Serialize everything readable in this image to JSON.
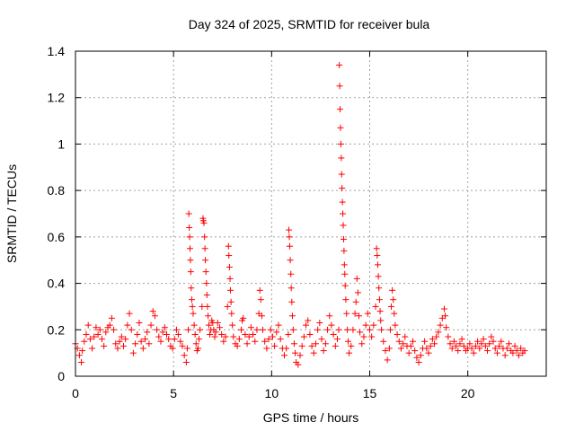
{
  "chart_data": {
    "type": "scatter",
    "title": "Day 324 of 2025, SRMTID for receiver bula",
    "xlabel": "GPS time / hours",
    "ylabel": "SRMTID / TECUs",
    "xlim": [
      0,
      24
    ],
    "ylim": [
      0,
      1.4
    ],
    "xticks": [
      0,
      5,
      10,
      15,
      20
    ],
    "xtick_labels": [
      "0",
      "5",
      "10",
      "15",
      "20"
    ],
    "yticks": [
      0,
      0.2,
      0.4,
      0.6,
      0.8,
      1.0,
      1.2,
      1.4
    ],
    "ytick_labels": [
      "0",
      "0.2",
      "0.4",
      "0.6",
      "0.8",
      "1",
      "1.2",
      "1.4"
    ],
    "grid": true,
    "marker": "+",
    "series": [
      {
        "name": "SRMTID",
        "color": "#ff0000",
        "points": [
          [
            0.0,
            0.14
          ],
          [
            0.1,
            0.12
          ],
          [
            0.2,
            0.09
          ],
          [
            0.3,
            0.06
          ],
          [
            0.35,
            0.11
          ],
          [
            0.45,
            0.15
          ],
          [
            0.55,
            0.18
          ],
          [
            0.65,
            0.22
          ],
          [
            0.75,
            0.16
          ],
          [
            0.85,
            0.12
          ],
          [
            0.95,
            0.17
          ],
          [
            1.05,
            0.21
          ],
          [
            1.15,
            0.18
          ],
          [
            1.25,
            0.2
          ],
          [
            1.35,
            0.16
          ],
          [
            1.45,
            0.13
          ],
          [
            1.55,
            0.19
          ],
          [
            1.65,
            0.21
          ],
          [
            1.75,
            0.22
          ],
          [
            1.85,
            0.25
          ],
          [
            1.95,
            0.2
          ],
          [
            2.05,
            0.14
          ],
          [
            2.15,
            0.12
          ],
          [
            2.25,
            0.15
          ],
          [
            2.35,
            0.17
          ],
          [
            2.45,
            0.13
          ],
          [
            2.55,
            0.16
          ],
          [
            2.65,
            0.22
          ],
          [
            2.75,
            0.27
          ],
          [
            2.85,
            0.2
          ],
          [
            2.95,
            0.1
          ],
          [
            3.05,
            0.14
          ],
          [
            3.15,
            0.18
          ],
          [
            3.25,
            0.23
          ],
          [
            3.35,
            0.15
          ],
          [
            3.45,
            0.12
          ],
          [
            3.55,
            0.16
          ],
          [
            3.65,
            0.19
          ],
          [
            3.75,
            0.14
          ],
          [
            3.85,
            0.22
          ],
          [
            3.95,
            0.28
          ],
          [
            4.05,
            0.26
          ],
          [
            4.15,
            0.2
          ],
          [
            4.25,
            0.17
          ],
          [
            4.35,
            0.15
          ],
          [
            4.45,
            0.19
          ],
          [
            4.55,
            0.21
          ],
          [
            4.65,
            0.18
          ],
          [
            4.75,
            0.16
          ],
          [
            4.85,
            0.13
          ],
          [
            4.95,
            0.12
          ],
          [
            5.05,
            0.16
          ],
          [
            5.15,
            0.2
          ],
          [
            5.25,
            0.18
          ],
          [
            5.35,
            0.15
          ],
          [
            5.45,
            0.13
          ],
          [
            5.55,
            0.09
          ],
          [
            5.65,
            0.06
          ],
          [
            5.7,
            0.12
          ],
          [
            5.75,
            0.2
          ],
          [
            5.78,
            0.7
          ],
          [
            5.8,
            0.64
          ],
          [
            5.82,
            0.6
          ],
          [
            5.84,
            0.55
          ],
          [
            5.86,
            0.5
          ],
          [
            5.88,
            0.45
          ],
          [
            5.9,
            0.38
          ],
          [
            5.93,
            0.33
          ],
          [
            5.96,
            0.3
          ],
          [
            6.0,
            0.27
          ],
          [
            6.05,
            0.22
          ],
          [
            6.1,
            0.18
          ],
          [
            6.15,
            0.14
          ],
          [
            6.2,
            0.11
          ],
          [
            6.25,
            0.12
          ],
          [
            6.3,
            0.16
          ],
          [
            6.35,
            0.2
          ],
          [
            6.45,
            0.3
          ],
          [
            6.5,
            0.68
          ],
          [
            6.52,
            0.67
          ],
          [
            6.55,
            0.66
          ],
          [
            6.58,
            0.6
          ],
          [
            6.6,
            0.55
          ],
          [
            6.62,
            0.5
          ],
          [
            6.65,
            0.45
          ],
          [
            6.68,
            0.4
          ],
          [
            6.7,
            0.35
          ],
          [
            6.73,
            0.3
          ],
          [
            6.76,
            0.26
          ],
          [
            6.8,
            0.22
          ],
          [
            6.85,
            0.18
          ],
          [
            6.9,
            0.2
          ],
          [
            6.95,
            0.24
          ],
          [
            7.0,
            0.23
          ],
          [
            7.05,
            0.2
          ],
          [
            7.1,
            0.17
          ],
          [
            7.15,
            0.19
          ],
          [
            7.25,
            0.23
          ],
          [
            7.35,
            0.21
          ],
          [
            7.45,
            0.18
          ],
          [
            7.55,
            0.15
          ],
          [
            7.65,
            0.17
          ],
          [
            7.75,
            0.3
          ],
          [
            7.8,
            0.56
          ],
          [
            7.82,
            0.52
          ],
          [
            7.85,
            0.47
          ],
          [
            7.88,
            0.42
          ],
          [
            7.9,
            0.37
          ],
          [
            7.93,
            0.32
          ],
          [
            7.96,
            0.27
          ],
          [
            8.0,
            0.22
          ],
          [
            8.05,
            0.17
          ],
          [
            8.15,
            0.14
          ],
          [
            8.25,
            0.13
          ],
          [
            8.35,
            0.16
          ],
          [
            8.45,
            0.2
          ],
          [
            8.5,
            0.24
          ],
          [
            8.55,
            0.25
          ],
          [
            8.65,
            0.18
          ],
          [
            8.75,
            0.14
          ],
          [
            8.85,
            0.17
          ],
          [
            8.95,
            0.21
          ],
          [
            9.05,
            0.18
          ],
          [
            9.15,
            0.15
          ],
          [
            9.25,
            0.2
          ],
          [
            9.35,
            0.27
          ],
          [
            9.4,
            0.37
          ],
          [
            9.45,
            0.33
          ],
          [
            9.5,
            0.26
          ],
          [
            9.55,
            0.2
          ],
          [
            9.65,
            0.15
          ],
          [
            9.75,
            0.12
          ],
          [
            9.85,
            0.16
          ],
          [
            9.95,
            0.2
          ],
          [
            10.05,
            0.17
          ],
          [
            10.15,
            0.13
          ],
          [
            10.25,
            0.19
          ],
          [
            10.35,
            0.22
          ],
          [
            10.45,
            0.16
          ],
          [
            10.55,
            0.12
          ],
          [
            10.65,
            0.09
          ],
          [
            10.75,
            0.12
          ],
          [
            10.85,
            0.18
          ],
          [
            10.88,
            0.63
          ],
          [
            10.9,
            0.6
          ],
          [
            10.92,
            0.56
          ],
          [
            10.95,
            0.5
          ],
          [
            10.98,
            0.44
          ],
          [
            11.0,
            0.38
          ],
          [
            11.03,
            0.32
          ],
          [
            11.06,
            0.26
          ],
          [
            11.1,
            0.2
          ],
          [
            11.15,
            0.14
          ],
          [
            11.2,
            0.1
          ],
          [
            11.25,
            0.06
          ],
          [
            11.35,
            0.05
          ],
          [
            11.45,
            0.09
          ],
          [
            11.55,
            0.13
          ],
          [
            11.65,
            0.17
          ],
          [
            11.75,
            0.22
          ],
          [
            11.85,
            0.24
          ],
          [
            11.95,
            0.18
          ],
          [
            12.05,
            0.13
          ],
          [
            12.15,
            0.1
          ],
          [
            12.25,
            0.14
          ],
          [
            12.35,
            0.2
          ],
          [
            12.45,
            0.23
          ],
          [
            12.55,
            0.16
          ],
          [
            12.65,
            0.11
          ],
          [
            12.75,
            0.14
          ],
          [
            12.85,
            0.2
          ],
          [
            12.95,
            0.26
          ],
          [
            13.05,
            0.22
          ],
          [
            13.15,
            0.18
          ],
          [
            13.25,
            0.13
          ],
          [
            13.35,
            0.16
          ],
          [
            13.42,
            0.2
          ],
          [
            13.45,
            1.34
          ],
          [
            13.47,
            1.25
          ],
          [
            13.49,
            1.15
          ],
          [
            13.51,
            1.07
          ],
          [
            13.53,
            1.0
          ],
          [
            13.55,
            0.94
          ],
          [
            13.57,
            0.87
          ],
          [
            13.59,
            0.81
          ],
          [
            13.61,
            0.75
          ],
          [
            13.63,
            0.7
          ],
          [
            13.65,
            0.65
          ],
          [
            13.67,
            0.59
          ],
          [
            13.69,
            0.54
          ],
          [
            13.71,
            0.48
          ],
          [
            13.73,
            0.44
          ],
          [
            13.75,
            0.39
          ],
          [
            13.78,
            0.33
          ],
          [
            13.82,
            0.27
          ],
          [
            13.86,
            0.2
          ],
          [
            13.9,
            0.15
          ],
          [
            13.95,
            0.1
          ],
          [
            14.05,
            0.13
          ],
          [
            14.15,
            0.2
          ],
          [
            14.25,
            0.27
          ],
          [
            14.3,
            0.32
          ],
          [
            14.35,
            0.42
          ],
          [
            14.4,
            0.36
          ],
          [
            14.45,
            0.26
          ],
          [
            14.5,
            0.19
          ],
          [
            14.6,
            0.14
          ],
          [
            14.7,
            0.17
          ],
          [
            14.8,
            0.22
          ],
          [
            14.9,
            0.27
          ],
          [
            15.0,
            0.2
          ],
          [
            15.1,
            0.17
          ],
          [
            15.2,
            0.22
          ],
          [
            15.3,
            0.3
          ],
          [
            15.35,
            0.55
          ],
          [
            15.38,
            0.52
          ],
          [
            15.41,
            0.48
          ],
          [
            15.44,
            0.43
          ],
          [
            15.47,
            0.38
          ],
          [
            15.5,
            0.33
          ],
          [
            15.53,
            0.28
          ],
          [
            15.56,
            0.24
          ],
          [
            15.6,
            0.2
          ],
          [
            15.7,
            0.15
          ],
          [
            15.8,
            0.11
          ],
          [
            15.9,
            0.07
          ],
          [
            16.0,
            0.12
          ],
          [
            16.05,
            0.2
          ],
          [
            16.1,
            0.3
          ],
          [
            16.15,
            0.37
          ],
          [
            16.2,
            0.33
          ],
          [
            16.25,
            0.27
          ],
          [
            16.3,
            0.22
          ],
          [
            16.4,
            0.18
          ],
          [
            16.5,
            0.15
          ],
          [
            16.6,
            0.12
          ],
          [
            16.7,
            0.14
          ],
          [
            16.8,
            0.17
          ],
          [
            16.9,
            0.13
          ],
          [
            17.0,
            0.1
          ],
          [
            17.1,
            0.13
          ],
          [
            17.2,
            0.15
          ],
          [
            17.3,
            0.11
          ],
          [
            17.4,
            0.08
          ],
          [
            17.5,
            0.06
          ],
          [
            17.6,
            0.09
          ],
          [
            17.7,
            0.12
          ],
          [
            17.8,
            0.15
          ],
          [
            17.9,
            0.12
          ],
          [
            18.0,
            0.1
          ],
          [
            18.1,
            0.13
          ],
          [
            18.2,
            0.16
          ],
          [
            18.3,
            0.14
          ],
          [
            18.4,
            0.17
          ],
          [
            18.5,
            0.19
          ],
          [
            18.6,
            0.22
          ],
          [
            18.7,
            0.25
          ],
          [
            18.8,
            0.29
          ],
          [
            18.85,
            0.26
          ],
          [
            18.9,
            0.21
          ],
          [
            19.0,
            0.17
          ],
          [
            19.1,
            0.14
          ],
          [
            19.2,
            0.12
          ],
          [
            19.3,
            0.15
          ],
          [
            19.4,
            0.13
          ],
          [
            19.5,
            0.11
          ],
          [
            19.6,
            0.14
          ],
          [
            19.7,
            0.16
          ],
          [
            19.8,
            0.13
          ],
          [
            19.9,
            0.11
          ],
          [
            20.0,
            0.12
          ],
          [
            20.1,
            0.14
          ],
          [
            20.2,
            0.12
          ],
          [
            20.3,
            0.1
          ],
          [
            20.4,
            0.13
          ],
          [
            20.5,
            0.15
          ],
          [
            20.6,
            0.12
          ],
          [
            20.7,
            0.14
          ],
          [
            20.8,
            0.16
          ],
          [
            20.9,
            0.13
          ],
          [
            21.0,
            0.11
          ],
          [
            21.1,
            0.14
          ],
          [
            21.2,
            0.17
          ],
          [
            21.3,
            0.15
          ],
          [
            21.4,
            0.12
          ],
          [
            21.5,
            0.1
          ],
          [
            21.6,
            0.13
          ],
          [
            21.7,
            0.15
          ],
          [
            21.8,
            0.12
          ],
          [
            21.9,
            0.09
          ],
          [
            22.0,
            0.12
          ],
          [
            22.1,
            0.14
          ],
          [
            22.2,
            0.11
          ],
          [
            22.3,
            0.1
          ],
          [
            22.4,
            0.13
          ],
          [
            22.5,
            0.11
          ],
          [
            22.6,
            0.09
          ],
          [
            22.7,
            0.12
          ],
          [
            22.8,
            0.1
          ],
          [
            22.9,
            0.11
          ]
        ]
      }
    ]
  }
}
